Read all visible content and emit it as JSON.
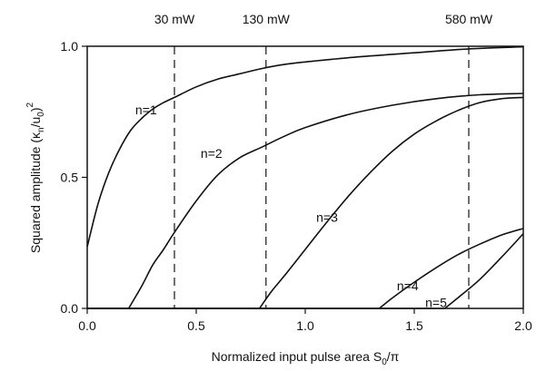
{
  "chart_data": {
    "type": "line",
    "xlabel": "Normalized input pulse area  S",
    "xlabel_sub": "0",
    "xlabel_tail": "/π",
    "ylabel": "Squared amplitude  (κ",
    "ylabel_sub": "n",
    "ylabel_mid": "/u",
    "ylabel_sub2": "0",
    "ylabel_tail": ")",
    "ylabel_sup": "2",
    "xlim": [
      0,
      2
    ],
    "ylim": [
      0,
      1
    ],
    "x_ticks": [
      {
        "value": 0.0,
        "label": "0.0"
      },
      {
        "value": 0.5,
        "label": "0.5"
      },
      {
        "value": 1.0,
        "label": "1.0"
      },
      {
        "value": 1.5,
        "label": "1.5"
      },
      {
        "value": 2.0,
        "label": "2.0"
      }
    ],
    "y_ticks": [
      {
        "value": 0.0,
        "label": "0.0"
      },
      {
        "value": 0.5,
        "label": "0.5"
      },
      {
        "value": 1.0,
        "label": "1.0"
      }
    ],
    "grid": false,
    "legend": "none",
    "vlines": [
      {
        "x": 0.4,
        "label": "30 mW"
      },
      {
        "x": 0.82,
        "label": "130 mW"
      },
      {
        "x": 1.75,
        "label": "580 mW"
      }
    ],
    "series": [
      {
        "name": "n=1",
        "label_at": [
          0.27,
          0.74
        ],
        "points": [
          [
            0.0,
            0.235
          ],
          [
            0.05,
            0.4
          ],
          [
            0.1,
            0.52
          ],
          [
            0.15,
            0.61
          ],
          [
            0.2,
            0.68
          ],
          [
            0.25,
            0.725
          ],
          [
            0.3,
            0.76
          ],
          [
            0.35,
            0.785
          ],
          [
            0.4,
            0.805
          ],
          [
            0.5,
            0.845
          ],
          [
            0.6,
            0.875
          ],
          [
            0.7,
            0.895
          ],
          [
            0.8,
            0.915
          ],
          [
            0.9,
            0.93
          ],
          [
            1.0,
            0.94
          ],
          [
            1.25,
            0.96
          ],
          [
            1.5,
            0.975
          ],
          [
            1.75,
            0.99
          ],
          [
            2.0,
            0.998
          ]
        ]
      },
      {
        "name": "n=2",
        "label_at": [
          0.57,
          0.575
        ],
        "points": [
          [
            0.0,
            0.0
          ],
          [
            0.19,
            0.0
          ],
          [
            0.25,
            0.085
          ],
          [
            0.3,
            0.165
          ],
          [
            0.35,
            0.225
          ],
          [
            0.4,
            0.29
          ],
          [
            0.5,
            0.41
          ],
          [
            0.6,
            0.51
          ],
          [
            0.7,
            0.575
          ],
          [
            0.8,
            0.615
          ],
          [
            0.9,
            0.655
          ],
          [
            1.0,
            0.69
          ],
          [
            1.2,
            0.74
          ],
          [
            1.4,
            0.775
          ],
          [
            1.6,
            0.8
          ],
          [
            1.8,
            0.815
          ],
          [
            2.0,
            0.82
          ]
        ]
      },
      {
        "name": "n=3",
        "label_at": [
          1.1,
          0.33
        ],
        "points": [
          [
            0.0,
            0.0
          ],
          [
            0.79,
            0.0
          ],
          [
            0.85,
            0.07
          ],
          [
            0.9,
            0.12
          ],
          [
            1.0,
            0.225
          ],
          [
            1.1,
            0.33
          ],
          [
            1.2,
            0.43
          ],
          [
            1.3,
            0.52
          ],
          [
            1.4,
            0.6
          ],
          [
            1.5,
            0.665
          ],
          [
            1.6,
            0.715
          ],
          [
            1.7,
            0.755
          ],
          [
            1.8,
            0.785
          ],
          [
            1.9,
            0.8
          ],
          [
            2.0,
            0.805
          ]
        ]
      },
      {
        "name": "n=4",
        "label_at": [
          1.47,
          0.07
        ],
        "points": [
          [
            0.0,
            0.0
          ],
          [
            1.34,
            0.0
          ],
          [
            1.4,
            0.04
          ],
          [
            1.5,
            0.1
          ],
          [
            1.6,
            0.155
          ],
          [
            1.7,
            0.205
          ],
          [
            1.8,
            0.245
          ],
          [
            1.9,
            0.28
          ],
          [
            2.0,
            0.305
          ]
        ]
      },
      {
        "name": "n=5",
        "label_at": [
          1.6,
          0.005
        ],
        "points": [
          [
            0.0,
            0.0
          ],
          [
            1.64,
            0.0
          ],
          [
            1.7,
            0.04
          ],
          [
            1.8,
            0.11
          ],
          [
            1.9,
            0.195
          ],
          [
            2.0,
            0.285
          ]
        ]
      }
    ]
  }
}
